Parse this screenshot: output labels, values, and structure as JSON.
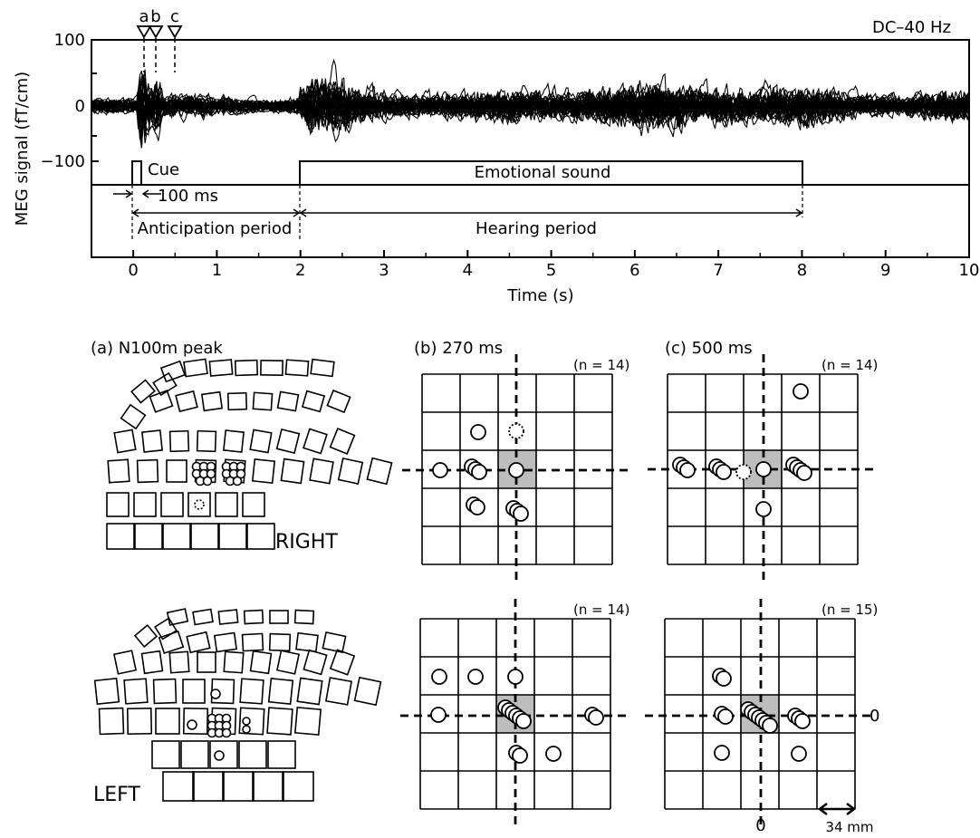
{
  "top_plot": {
    "filter_label": "DC–40 Hz",
    "markers": [
      "a",
      "b",
      "c"
    ],
    "ylabel": "MEG signal (fT/cm)",
    "xlabel": "Time (s)",
    "cue_label": "Cue",
    "sound_label": "Emotional sound",
    "interval_label": "100 ms",
    "anticipation_label": "Anticipation period",
    "hearing_label": "Hearing period"
  },
  "chart_data": {
    "type": "line",
    "xlabel": "Time (s)",
    "ylabel": "MEG signal (fT/cm)",
    "xlim": [
      -0.5,
      10
    ],
    "ylim": [
      -100,
      100
    ],
    "x_ticks": [
      "0",
      "1",
      "2",
      "3",
      "4",
      "5",
      "6",
      "7",
      "8",
      "9",
      "10"
    ],
    "y_ticks": [
      "100",
      "0",
      "−100"
    ],
    "events": {
      "cue": [
        0,
        0.1
      ],
      "sound": [
        2,
        8
      ],
      "markers": [
        {
          "label": "a",
          "t": 0.1
        },
        {
          "label": "b",
          "t": 0.27
        },
        {
          "label": "c",
          "t": 0.5
        }
      ]
    }
  },
  "panels": {
    "a_title": "(a) N100m peak",
    "b_title": "(b) 270 ms",
    "c_title": "(c) 500 ms",
    "right_label": "RIGHT",
    "left_label": "LEFT",
    "n_b_right": "(n = 14)",
    "n_c_right": "(n = 14)",
    "n_b_left": "(n = 14)",
    "n_c_left": "(n = 15)",
    "zero_x": "0",
    "zero_y": "0",
    "scale_label": "34 mm"
  }
}
